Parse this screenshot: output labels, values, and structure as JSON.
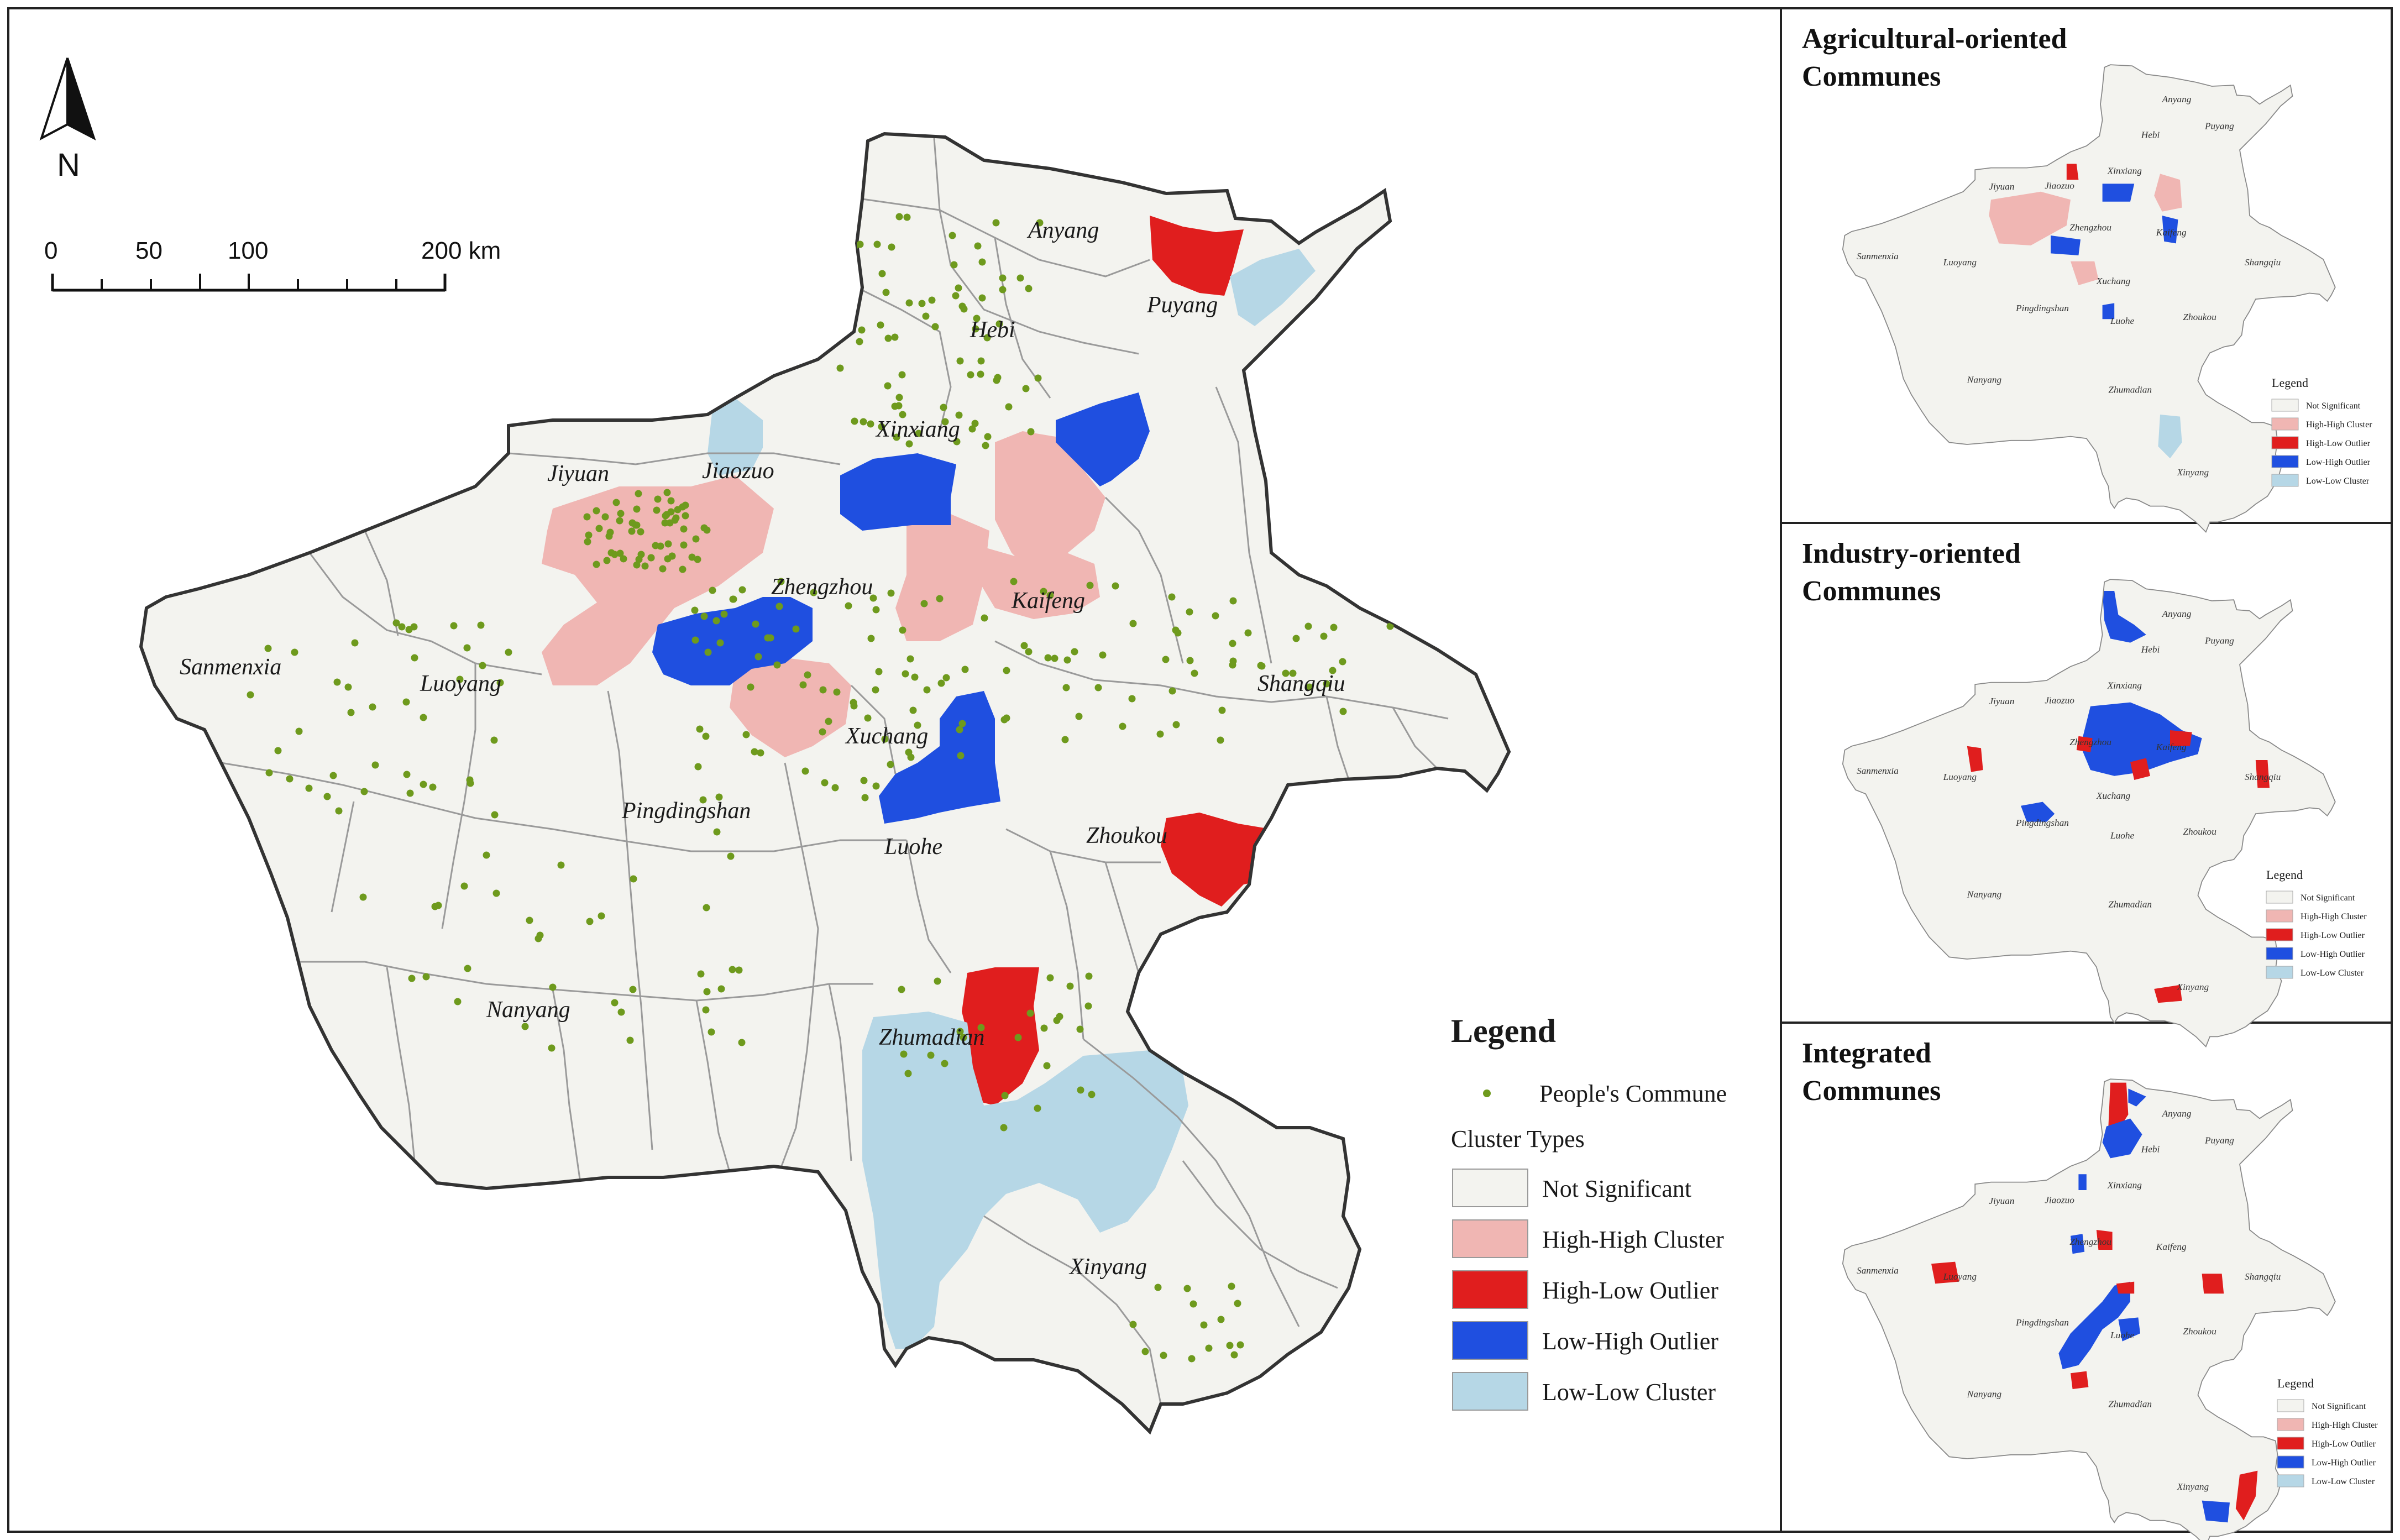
{
  "colors": {
    "not_significant": "#f3f3ef",
    "high_high": "#f0b6b3",
    "high_low": "#e01e1e",
    "low_high": "#1f4fe0",
    "low_low": "#b6d7e6",
    "commune_dot": "#6e9a1d",
    "border": "#555555"
  },
  "main_map": {
    "north_label": "N",
    "scale": {
      "ticks": [
        "0",
        "50",
        "100",
        "200 km"
      ]
    },
    "cities": [
      "Anyang",
      "Puyang",
      "Hebi",
      "Xinxiang",
      "Jiaozuo",
      "Jiyuan",
      "Zhengzhou",
      "Kaifeng",
      "Sanmenxia",
      "Luoyang",
      "Shangqiu",
      "Xuchang",
      "Pingdingshan",
      "Luohe",
      "Zhoukou",
      "Nanyang",
      "Zhumadian",
      "Xinyang"
    ]
  },
  "legend": {
    "title": "Legend",
    "point_label": "People's Commune",
    "cluster_title": "Cluster Types",
    "items": [
      {
        "label": "Not Significant",
        "color": "#f3f3ef"
      },
      {
        "label": "High-High Cluster",
        "color": "#f0b6b3"
      },
      {
        "label": "High-Low Outlier",
        "color": "#e01e1e"
      },
      {
        "label": "Low-High Outlier",
        "color": "#1f4fe0"
      },
      {
        "label": "Low-Low Cluster",
        "color": "#b6d7e6"
      }
    ]
  },
  "panels": [
    {
      "title_line1": "Agricultural-oriented",
      "title_line2": "Communes",
      "cities": [
        "Anyang",
        "Hebi",
        "Puyang",
        "Jiyuan",
        "Jiaozuo",
        "Xinxiang",
        "Zhengzhou",
        "Kaifeng",
        "Sanmenxia",
        "Luoyang",
        "Shangqiu",
        "Xuchang",
        "Pingdingshan",
        "Zhoukou",
        "Luohe",
        "Nanyang",
        "Zhumadian",
        "Xinyang"
      ]
    },
    {
      "title_line1": "Industry-oriented",
      "title_line2": "Communes",
      "cities": [
        "Anyang",
        "Hebi",
        "Puyang",
        "Jiyuan",
        "Jiaozuo",
        "Xinxiang",
        "Zhengzhou",
        "Kaifeng",
        "Sanmenxia",
        "Luoyang",
        "Shangqiu",
        "Xuchang",
        "Pingdingshan",
        "Luohe",
        "Zhoukou",
        "Nanyang",
        "Zhumadian",
        "Xinyang"
      ]
    },
    {
      "title_line1": "Integrated",
      "title_line2": "Communes",
      "cities": [
        "Anyang",
        "Puyang",
        "Hebi",
        "Xinxiang",
        "Jiyuan",
        "Jiaozuo",
        "Zhengzhou",
        "Kaifeng",
        "Sanmenxia",
        "Luoyang",
        "Shangqiu",
        "Pingdingshan",
        "Luohe",
        "Zhoukou",
        "Nanyang",
        "Zhumadian",
        "Xinyang"
      ]
    }
  ],
  "mini_legend": {
    "title": "Legend",
    "items": [
      "Not Significant",
      "High-High Cluster",
      "High-Low Outlier",
      "Low-High Outlier",
      "Low-Low Cluster"
    ]
  }
}
